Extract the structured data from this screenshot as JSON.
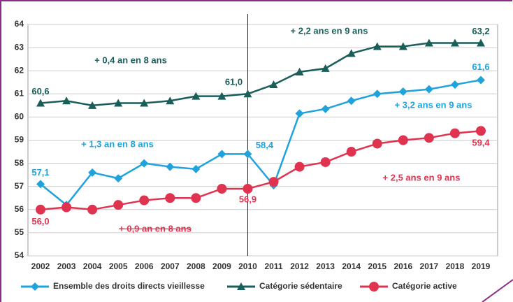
{
  "chart_data": {
    "type": "line",
    "categories": [
      "2002",
      "2003",
      "2004",
      "2005",
      "2006",
      "2007",
      "2008",
      "2009",
      "2010",
      "2011",
      "2012",
      "2013",
      "2014",
      "2015",
      "2016",
      "2017",
      "2018",
      "2019"
    ],
    "ylim": [
      54,
      64
    ],
    "yticks": [
      54,
      55,
      56,
      57,
      58,
      59,
      60,
      61,
      62,
      63,
      64
    ],
    "grid": true,
    "series": [
      {
        "name": "Ensemble des droits directs vieillesse",
        "color": "#1fa3dc",
        "marker": "diamond",
        "values": [
          57.1,
          56.2,
          57.6,
          57.35,
          58.0,
          57.85,
          57.75,
          58.4,
          58.4,
          57.05,
          60.15,
          60.35,
          60.7,
          61.0,
          61.1,
          61.2,
          61.4,
          61.6
        ],
        "value_labels": [
          "57,1",
          null,
          null,
          null,
          null,
          null,
          null,
          null,
          "58,4",
          null,
          null,
          null,
          null,
          null,
          null,
          null,
          null,
          "61,6"
        ]
      },
      {
        "name": "Catégorie sédentaire",
        "color": "#1a5e5a",
        "marker": "triangle",
        "values": [
          60.6,
          60.7,
          60.5,
          60.6,
          60.6,
          60.7,
          60.9,
          60.9,
          61.0,
          61.4,
          61.95,
          62.1,
          62.75,
          63.05,
          63.05,
          63.2,
          63.2,
          63.2
        ],
        "value_labels": [
          "60,6",
          null,
          null,
          null,
          null,
          null,
          null,
          null,
          "61,0",
          null,
          null,
          null,
          null,
          null,
          null,
          null,
          null,
          "63,2"
        ]
      },
      {
        "name": "Catégorie active",
        "color": "#e0334f",
        "marker": "circle",
        "values": [
          56.0,
          56.1,
          56.0,
          56.2,
          56.4,
          56.5,
          56.5,
          56.9,
          56.9,
          57.2,
          57.85,
          58.05,
          58.5,
          58.85,
          59.0,
          59.1,
          59.3,
          59.4
        ],
        "value_labels": [
          "56,0",
          null,
          null,
          null,
          null,
          null,
          null,
          null,
          "56,9",
          null,
          null,
          null,
          null,
          null,
          null,
          null,
          null,
          "59,4"
        ]
      }
    ],
    "annotations": [
      "+ 0,4 an en 8 ans",
      "+ 2,2 ans en 9 ans",
      "+ 1,3 an en 8 ans",
      "+ 3,2 ans en 9 ans",
      "+ 2,5 ans en 9 ans",
      "+ 0,9 an en 8 ans"
    ]
  }
}
